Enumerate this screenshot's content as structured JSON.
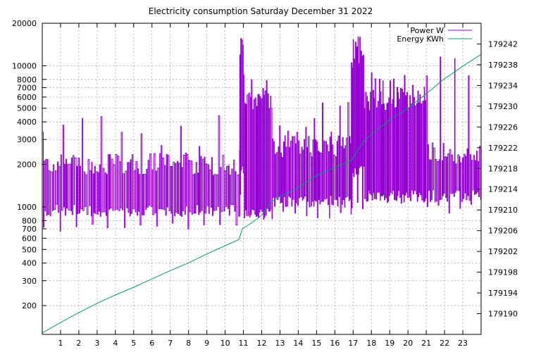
{
  "chart_data": {
    "type": "line",
    "title": "Electricity consumption Saturday December 31 2022",
    "xlabel": "",
    "ylabel": "",
    "y2label": "",
    "x_ticks": [
      1,
      2,
      3,
      4,
      5,
      6,
      7,
      8,
      9,
      10,
      11,
      12,
      13,
      14,
      15,
      16,
      17,
      18,
      19,
      20,
      21,
      22,
      23
    ],
    "xlim": [
      0,
      24
    ],
    "y_scale": "log",
    "ylim": [
      125,
      20000
    ],
    "y_ticks": [
      200,
      300,
      400,
      500,
      600,
      700,
      800,
      1000,
      2000,
      3000,
      4000,
      5000,
      6000,
      7000,
      8000,
      10000,
      20000
    ],
    "y2lim": [
      179186,
      179246
    ],
    "y2_ticks": [
      179190,
      179194,
      179198,
      179202,
      179206,
      179210,
      179214,
      179218,
      179222,
      179226,
      179230,
      179234,
      179238,
      179242
    ],
    "grid": true,
    "legend_position": "top-right",
    "series": [
      {
        "name": "Power W",
        "axis": "y",
        "color": "#9400d3",
        "segments": [
          {
            "x0": 0.0,
            "x1": 10.8,
            "low": 950,
            "high": 2100,
            "cycle": 0.1,
            "spike_every": 11,
            "spike_max": 4500,
            "dip_every": 9,
            "dip_min": 700
          },
          {
            "x0": 10.8,
            "x1": 11.0,
            "low": 1800,
            "high": 18000,
            "cycle": 0.06,
            "spike_every": 1,
            "spike_max": 18000,
            "dip_every": 4,
            "dip_min": 1200
          },
          {
            "x0": 11.0,
            "x1": 12.5,
            "low": 900,
            "high": 6000,
            "cycle": 0.07,
            "spike_every": 3,
            "spike_max": 9000,
            "dip_every": 5,
            "dip_min": 850
          },
          {
            "x0": 12.5,
            "x1": 16.9,
            "low": 1100,
            "high": 2800,
            "cycle": 0.08,
            "spike_every": 6,
            "spike_max": 5500,
            "dip_every": 8,
            "dip_min": 850
          },
          {
            "x0": 16.9,
            "x1": 17.6,
            "low": 1800,
            "high": 12000,
            "cycle": 0.06,
            "spike_every": 2,
            "spike_max": 18000,
            "dip_every": 5,
            "dip_min": 1000
          },
          {
            "x0": 17.6,
            "x1": 21.0,
            "low": 1200,
            "high": 6000,
            "cycle": 0.07,
            "spike_every": 3,
            "spike_max": 9000,
            "dip_every": 6,
            "dip_min": 1100
          },
          {
            "x0": 21.0,
            "x1": 24.0,
            "low": 1200,
            "high": 2500,
            "cycle": 0.09,
            "spike_every": 9,
            "spike_max": 12000,
            "dip_every": 7,
            "dip_min": 950
          }
        ]
      },
      {
        "name": "Energy KWh",
        "axis": "y2",
        "color": "#009e73",
        "points": [
          [
            0.0,
            179186.3
          ],
          [
            1.0,
            179188.3
          ],
          [
            2.0,
            179190.2
          ],
          [
            3.0,
            179192.0
          ],
          [
            4.0,
            179193.6
          ],
          [
            5.0,
            179195.1
          ],
          [
            6.0,
            179196.7
          ],
          [
            7.0,
            179198.3
          ],
          [
            8.0,
            179199.8
          ],
          [
            9.0,
            179201.5
          ],
          [
            10.0,
            179203.1
          ],
          [
            10.75,
            179204.3
          ],
          [
            10.95,
            179206.4
          ],
          [
            11.5,
            179207.6
          ],
          [
            12.0,
            179209.0
          ],
          [
            12.5,
            179211.5
          ],
          [
            13.0,
            179212.6
          ],
          [
            14.0,
            179214.3
          ],
          [
            15.0,
            179216.6
          ],
          [
            16.0,
            179218.2
          ],
          [
            16.9,
            179219.5
          ],
          [
            17.2,
            179221.2
          ],
          [
            17.6,
            179223.3
          ],
          [
            18.0,
            179224.6
          ],
          [
            19.0,
            179227.4
          ],
          [
            20.0,
            179229.6
          ],
          [
            21.0,
            179232.4
          ],
          [
            22.0,
            179235.3
          ],
          [
            23.0,
            179237.7
          ],
          [
            24.0,
            179240.0
          ]
        ]
      }
    ]
  }
}
